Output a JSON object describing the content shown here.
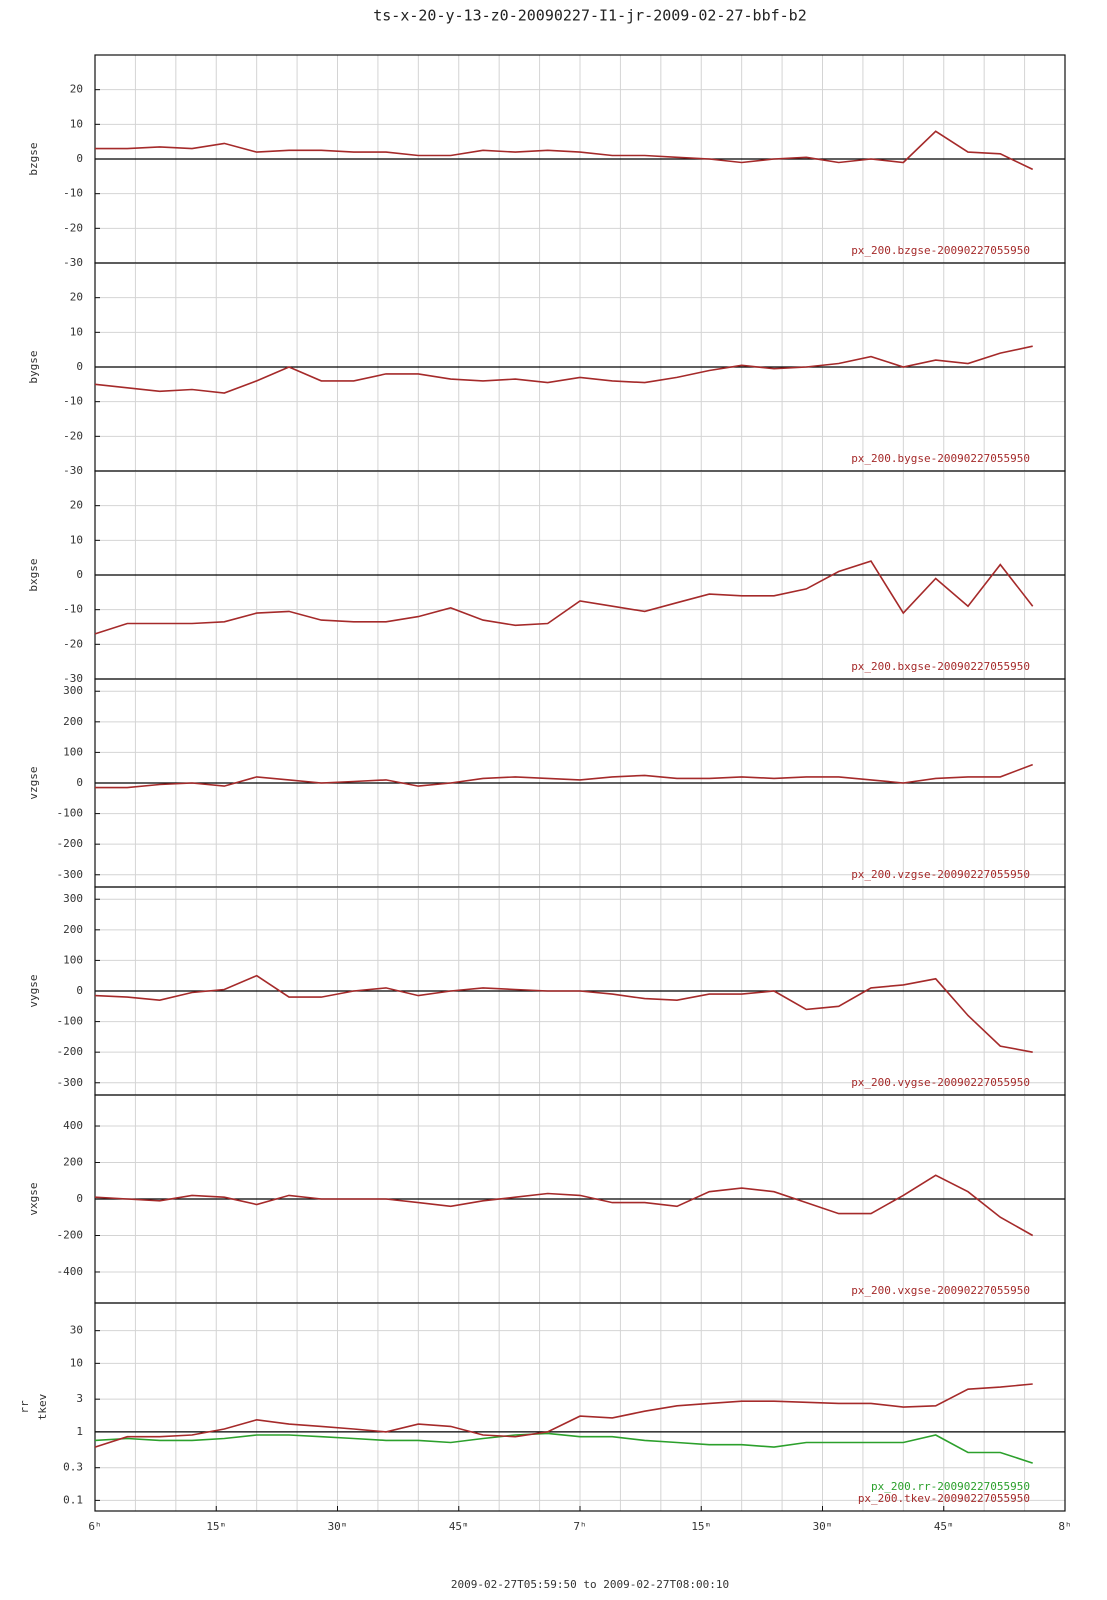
{
  "title": "ts-x-20-y-13-z0-20090227-I1-jr-2009-02-27-bbf-b2",
  "xlabel": "2009-02-27T05:59:50 to 2009-02-27T08:00:10",
  "chart_data": [
    {
      "type": "line",
      "ylabel": "bzgse",
      "ylim": [
        -30,
        30
      ],
      "yticks": [
        20,
        10,
        0,
        -10,
        -20,
        -30
      ],
      "x": [
        0,
        4,
        8,
        12,
        16,
        20,
        24,
        28,
        32,
        36,
        40,
        44,
        48,
        52,
        56,
        60,
        64,
        68,
        72,
        76,
        80,
        84,
        88,
        92,
        96,
        100,
        104,
        108,
        112,
        116
      ],
      "series": [
        {
          "name": "px_200.bzgse-20090227055950",
          "color": "#a52a2a",
          "values": [
            3,
            3,
            3.5,
            3,
            4.5,
            2,
            2.5,
            2.5,
            2,
            2,
            1,
            1,
            2.5,
            2,
            2.5,
            2,
            1,
            1,
            0.5,
            0,
            -1,
            0,
            0.5,
            -1,
            0,
            -1,
            8,
            2,
            1.5,
            -3
          ]
        }
      ]
    },
    {
      "type": "line",
      "ylabel": "bygse",
      "ylim": [
        -30,
        30
      ],
      "yticks": [
        20,
        10,
        0,
        -10,
        -20,
        -30
      ],
      "x": [
        0,
        4,
        8,
        12,
        16,
        20,
        24,
        28,
        32,
        36,
        40,
        44,
        48,
        52,
        56,
        60,
        64,
        68,
        72,
        76,
        80,
        84,
        88,
        92,
        96,
        100,
        104,
        108,
        112,
        116
      ],
      "series": [
        {
          "name": "px_200.bygse-20090227055950",
          "color": "#a52a2a",
          "values": [
            -5,
            -6,
            -7,
            -6.5,
            -7.5,
            -4,
            0,
            -4,
            -4,
            -2,
            -2,
            -3.5,
            -4,
            -3.5,
            -4.5,
            -3,
            -4,
            -4.5,
            -3,
            -1,
            0.5,
            -0.5,
            0,
            1,
            3,
            0,
            2,
            1,
            4,
            6
          ]
        }
      ]
    },
    {
      "type": "line",
      "ylabel": "bxgse",
      "ylim": [
        -30,
        30
      ],
      "yticks": [
        20,
        10,
        0,
        -10,
        -20,
        -30
      ],
      "x": [
        0,
        4,
        8,
        12,
        16,
        20,
        24,
        28,
        32,
        36,
        40,
        44,
        48,
        52,
        56,
        60,
        64,
        68,
        72,
        76,
        80,
        84,
        88,
        92,
        96,
        100,
        104,
        108,
        112,
        116
      ],
      "series": [
        {
          "name": "px_200.bxgse-20090227055950",
          "color": "#a52a2a",
          "values": [
            -17,
            -14,
            -14,
            -14,
            -13.5,
            -11,
            -10.5,
            -13,
            -13.5,
            -13.5,
            -12,
            -9.5,
            -13,
            -14.5,
            -14,
            -7.5,
            -9,
            -10.5,
            -8,
            -5.5,
            -6,
            -6,
            -4,
            1,
            4,
            -11,
            -1,
            -9,
            3,
            -9
          ]
        }
      ]
    },
    {
      "type": "line",
      "ylabel": "vzgse",
      "ylim": [
        -340,
        340
      ],
      "yticks": [
        300,
        200,
        100,
        0,
        -100,
        -200,
        -300
      ],
      "x": [
        0,
        4,
        8,
        12,
        16,
        20,
        24,
        28,
        32,
        36,
        40,
        44,
        48,
        52,
        56,
        60,
        64,
        68,
        72,
        76,
        80,
        84,
        88,
        92,
        96,
        100,
        104,
        108,
        112,
        116
      ],
      "series": [
        {
          "name": "px_200.vzgse-20090227055950",
          "color": "#a52a2a",
          "values": [
            -15,
            -15,
            -5,
            0,
            -10,
            20,
            10,
            0,
            5,
            10,
            -10,
            0,
            15,
            20,
            15,
            10,
            20,
            25,
            15,
            15,
            20,
            15,
            20,
            20,
            10,
            0,
            15,
            20,
            20,
            60
          ]
        }
      ]
    },
    {
      "type": "line",
      "ylabel": "vygse",
      "ylim": [
        -340,
        340
      ],
      "yticks": [
        300,
        200,
        100,
        0,
        -100,
        -200,
        -300
      ],
      "x": [
        0,
        4,
        8,
        12,
        16,
        20,
        24,
        28,
        32,
        36,
        40,
        44,
        48,
        52,
        56,
        60,
        64,
        68,
        72,
        76,
        80,
        84,
        88,
        92,
        96,
        100,
        104,
        108,
        112,
        116
      ],
      "series": [
        {
          "name": "px_200.vygse-20090227055950",
          "color": "#a52a2a",
          "values": [
            -15,
            -20,
            -30,
            -5,
            5,
            50,
            -20,
            -20,
            0,
            10,
            -15,
            0,
            10,
            5,
            0,
            0,
            -10,
            -25,
            -30,
            -10,
            -10,
            0,
            -60,
            -50,
            10,
            20,
            40,
            -80,
            -180,
            -200
          ]
        }
      ]
    },
    {
      "type": "line",
      "ylabel": "vxgse",
      "ylim": [
        -570,
        570
      ],
      "yticks": [
        400,
        200,
        0,
        -200,
        -400
      ],
      "x": [
        0,
        4,
        8,
        12,
        16,
        20,
        24,
        28,
        32,
        36,
        40,
        44,
        48,
        52,
        56,
        60,
        64,
        68,
        72,
        76,
        80,
        84,
        88,
        92,
        96,
        100,
        104,
        108,
        112,
        116
      ],
      "series": [
        {
          "name": "px_200.vxgse-20090227055950",
          "color": "#a52a2a",
          "values": [
            10,
            0,
            -10,
            20,
            10,
            -30,
            20,
            0,
            0,
            0,
            -20,
            -40,
            -10,
            10,
            30,
            20,
            -20,
            -20,
            -40,
            40,
            60,
            40,
            -20,
            -80,
            -80,
            20,
            130,
            40,
            -100,
            -200
          ]
        }
      ]
    },
    {
      "type": "line",
      "ylabel": [
        "rr",
        "tkev"
      ],
      "yscale": "log",
      "ylim": [
        0.07,
        76
      ],
      "yticks": [
        30,
        10,
        3,
        1,
        0.3,
        0.1
      ],
      "xlim": [
        0,
        120
      ],
      "xticks": [
        {
          "value": 0,
          "label": "6ʰ"
        },
        {
          "value": 15,
          "label": "15ᵐ"
        },
        {
          "value": 30,
          "label": "30ᵐ"
        },
        {
          "value": 45,
          "label": "45ᵐ"
        },
        {
          "value": 60,
          "label": "7ʰ"
        },
        {
          "value": 75,
          "label": "15ᵐ"
        },
        {
          "value": 90,
          "label": "30ᵐ"
        },
        {
          "value": 105,
          "label": "45ᵐ"
        },
        {
          "value": 120,
          "label": "8ʰ"
        }
      ],
      "xminor": [
        5,
        10,
        20,
        25,
        35,
        40,
        50,
        55,
        65,
        70,
        80,
        85,
        95,
        100,
        110,
        115
      ],
      "x": [
        0,
        4,
        8,
        12,
        16,
        20,
        24,
        28,
        32,
        36,
        40,
        44,
        48,
        52,
        56,
        60,
        64,
        68,
        72,
        76,
        80,
        84,
        88,
        92,
        96,
        100,
        104,
        108,
        112,
        116
      ],
      "series": [
        {
          "name": "px_200.rr-20090227055950",
          "color": "#2ca02c",
          "values": [
            0.75,
            0.8,
            0.75,
            0.75,
            0.8,
            0.9,
            0.9,
            0.85,
            0.8,
            0.75,
            0.75,
            0.7,
            0.8,
            0.9,
            0.95,
            0.85,
            0.85,
            0.75,
            0.7,
            0.65,
            0.65,
            0.6,
            0.7,
            0.7,
            0.7,
            0.7,
            0.9,
            0.5,
            0.5,
            0.35
          ]
        },
        {
          "name": "px_200.tkev-20090227055950",
          "color": "#a52a2a",
          "values": [
            0.6,
            0.85,
            0.85,
            0.9,
            1.1,
            1.5,
            1.3,
            1.2,
            1.1,
            1,
            1.3,
            1.2,
            0.9,
            0.85,
            1,
            1.7,
            1.6,
            2,
            2.4,
            2.6,
            2.8,
            2.8,
            2.7,
            2.6,
            2.6,
            2.3,
            2.4,
            4.2,
            4.5,
            5
          ]
        }
      ]
    }
  ]
}
